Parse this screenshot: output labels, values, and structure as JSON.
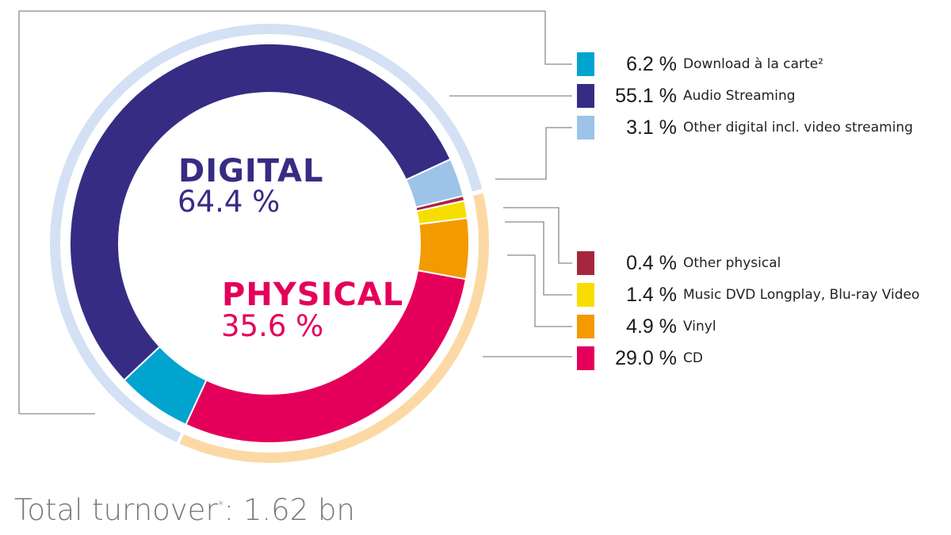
{
  "chart_data": {
    "type": "pie",
    "variant": "donut",
    "title": "",
    "groups": [
      {
        "name": "DIGITAL",
        "value": 64.4,
        "value_label": "64.4 %",
        "color": "#372c83",
        "ring_color": "#d4e1f4"
      },
      {
        "name": "PHYSICAL",
        "value": 35.6,
        "value_label": "35.6 %",
        "color": "#e4005a",
        "ring_color": "#fcd9a4"
      }
    ],
    "segments": [
      {
        "name": "Download à la carte²",
        "value": 6.2,
        "group": "DIGITAL",
        "color": "#00a4cf"
      },
      {
        "name": "Audio Streaming",
        "value": 55.1,
        "group": "DIGITAL",
        "color": "#372c83"
      },
      {
        "name": "Other digital incl. video streaming",
        "value": 3.1,
        "group": "DIGITAL",
        "color": "#9dc3e8"
      },
      {
        "name": "Other physical",
        "value": 0.4,
        "group": "PHYSICAL",
        "color": "#a6263e"
      },
      {
        "name": "Music DVD Longplay, Blu-ray Video",
        "value": 1.4,
        "group": "PHYSICAL",
        "color": "#f7de00"
      },
      {
        "name": "Vinyl",
        "value": 4.9,
        "group": "PHYSICAL",
        "color": "#f39a00"
      },
      {
        "name": "CD",
        "value": 29.0,
        "group": "PHYSICAL",
        "color": "#e4005a"
      }
    ],
    "unit": "%",
    "footer": "Total turnover*: 1.62 bn",
    "legend_position": "right"
  },
  "center": {
    "digital_title": "DIGITAL",
    "digital_value": "64.4 %",
    "physical_title": "PHYSICAL",
    "physical_value": "35.6 %"
  },
  "legend": {
    "items": [
      {
        "pct": "6.2 %",
        "label": "Download à la carte²",
        "color": "#00a4cf"
      },
      {
        "pct": "55.1 %",
        "label": "Audio Streaming",
        "color": "#372c83"
      },
      {
        "pct": "3.1 %",
        "label": "Other digital incl. video streaming",
        "color": "#9dc3e8"
      },
      {
        "pct": "0.4 %",
        "label": "Other physical",
        "color": "#a6263e"
      },
      {
        "pct": "1.4 %",
        "label": "Music DVD Longplay, Blu-ray Video",
        "color": "#f7de00"
      },
      {
        "pct": "4.9 %",
        "label": "Vinyl",
        "color": "#f39a00"
      },
      {
        "pct": "29.0 %",
        "label": "CD",
        "color": "#e4005a"
      }
    ]
  },
  "footer": {
    "label": "Total turnover",
    "marker": "*",
    "value": ": 1.62 bn"
  }
}
